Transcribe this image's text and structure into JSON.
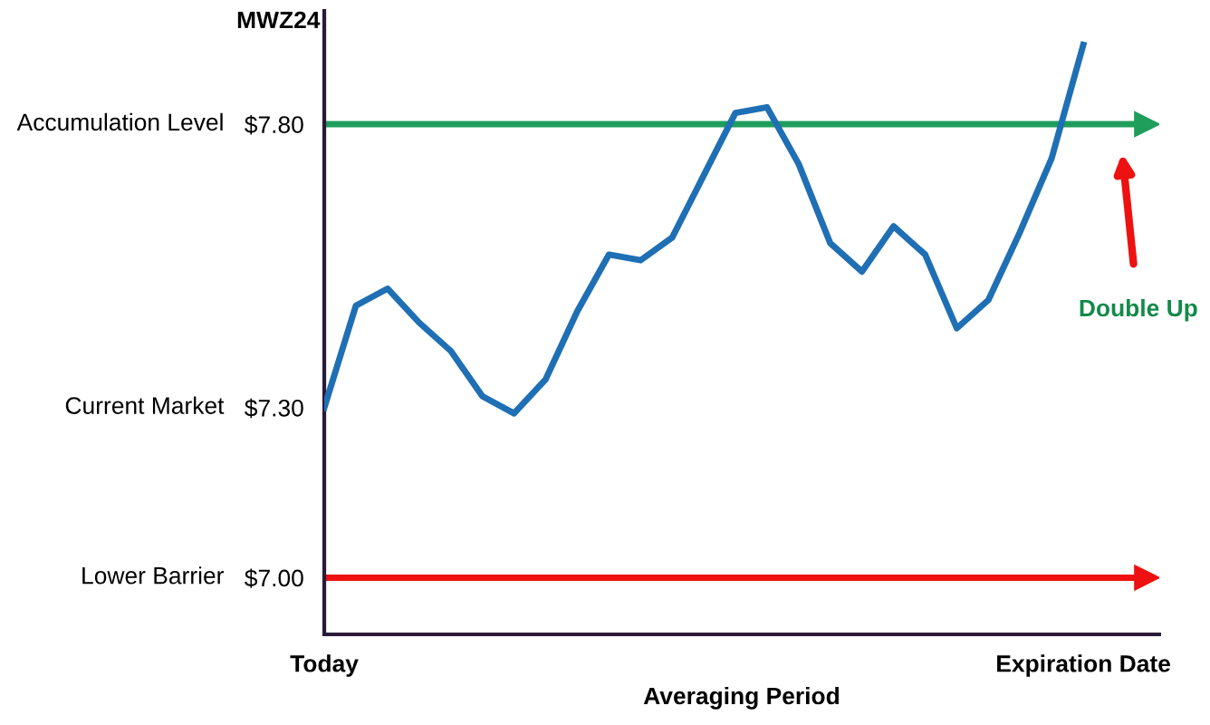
{
  "chart_data": {
    "type": "line",
    "title": "MWZ24",
    "xlabel": "Averaging Period",
    "categories": [
      "Today",
      null,
      null,
      null,
      null,
      null,
      null,
      null,
      null,
      null,
      null,
      null,
      null,
      null,
      null,
      null,
      null,
      null,
      null,
      null,
      null,
      null,
      null,
      null,
      "Expiration Date"
    ],
    "series": [
      {
        "color": "#1f6fb5",
        "values": [
          7.3,
          7.48,
          7.51,
          7.45,
          7.4,
          7.32,
          7.29,
          7.35,
          7.47,
          7.57,
          7.56,
          7.6,
          7.71,
          7.82,
          7.83,
          7.73,
          7.59,
          7.54,
          7.62,
          7.57,
          7.44,
          7.49,
          7.61,
          7.74,
          7.94
        ]
      }
    ],
    "ylim": [
      6.9,
      8.0
    ],
    "yticks": [
      {
        "value": 7.0,
        "label": "$7.00"
      },
      {
        "value": 7.3,
        "label": "$7.30"
      },
      {
        "value": 7.8,
        "label": "$7.80"
      }
    ],
    "ref_lines": [
      {
        "axis": "y",
        "value": 7.8,
        "color": "#1e9e5a"
      },
      {
        "axis": "y",
        "value": 7.0,
        "color": "#ee1111"
      }
    ],
    "annotations": [
      "Accumulation Level",
      "Current Market",
      "Lower Barrier",
      "Double Up"
    ],
    "grid": false,
    "legend": false,
    "marker": "none",
    "line_style": "solid"
  }
}
